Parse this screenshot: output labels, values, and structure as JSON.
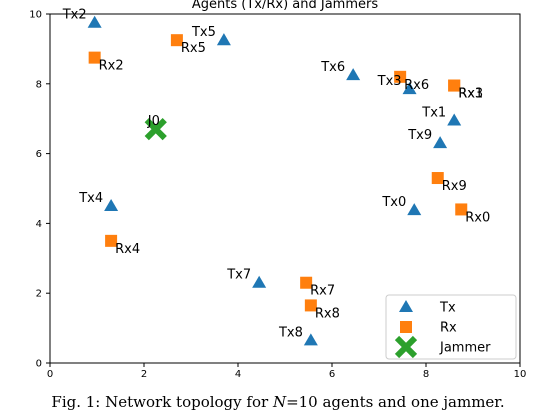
{
  "chart_data": {
    "type": "scatter",
    "title": "Agents (Tx/Rx) and Jammers",
    "xlabel": "",
    "ylabel": "",
    "xlim": [
      0,
      10
    ],
    "ylim": [
      0,
      10
    ],
    "xticks": [
      0,
      2,
      4,
      6,
      8,
      10
    ],
    "yticks": [
      0,
      2,
      4,
      6,
      8,
      10
    ],
    "grid": false,
    "legend_position": "lower-right",
    "series": [
      {
        "name": "Tx",
        "marker": "triangle",
        "color": "#1f77b4",
        "points": [
          {
            "label": "Tx0",
            "x": 7.75,
            "y": 4.38
          },
          {
            "label": "Tx1",
            "x": 8.6,
            "y": 6.95
          },
          {
            "label": "Tx2",
            "x": 0.95,
            "y": 9.75
          },
          {
            "label": "Tx3",
            "x": 7.65,
            "y": 7.85
          },
          {
            "label": "Tx4",
            "x": 1.3,
            "y": 4.5
          },
          {
            "label": "Tx5",
            "x": 3.7,
            "y": 9.25
          },
          {
            "label": "Tx6",
            "x": 6.45,
            "y": 8.25
          },
          {
            "label": "Tx7",
            "x": 4.45,
            "y": 2.3
          },
          {
            "label": "Tx8",
            "x": 5.55,
            "y": 0.65
          },
          {
            "label": "Tx9",
            "x": 8.3,
            "y": 6.3
          }
        ]
      },
      {
        "name": "Rx",
        "marker": "square",
        "color": "#ff7f0e",
        "points": [
          {
            "label": "Rx0",
            "x": 8.75,
            "y": 4.4
          },
          {
            "label": "Rx1",
            "x": 8.6,
            "y": 7.95
          },
          {
            "label": "Rx2",
            "x": 0.95,
            "y": 8.75
          },
          {
            "label": "Rx3",
            "x": 8.6,
            "y": 7.95
          },
          {
            "label": "Rx4",
            "x": 1.3,
            "y": 3.5
          },
          {
            "label": "Rx5",
            "x": 2.7,
            "y": 9.25
          },
          {
            "label": "Rx6",
            "x": 7.45,
            "y": 8.2
          },
          {
            "label": "Rx7",
            "x": 5.45,
            "y": 2.3
          },
          {
            "label": "Rx8",
            "x": 5.55,
            "y": 1.65
          },
          {
            "label": "Rx9",
            "x": 8.25,
            "y": 5.3
          }
        ]
      },
      {
        "name": "Jammer",
        "marker": "x",
        "color": "#2ca02c",
        "points": [
          {
            "label": "J0",
            "x": 2.25,
            "y": 6.7
          }
        ]
      }
    ]
  },
  "caption": {
    "prefix": "Fig. 1: Network topology for ",
    "math": "N",
    "suffix": "=10 agents and one jammer."
  }
}
